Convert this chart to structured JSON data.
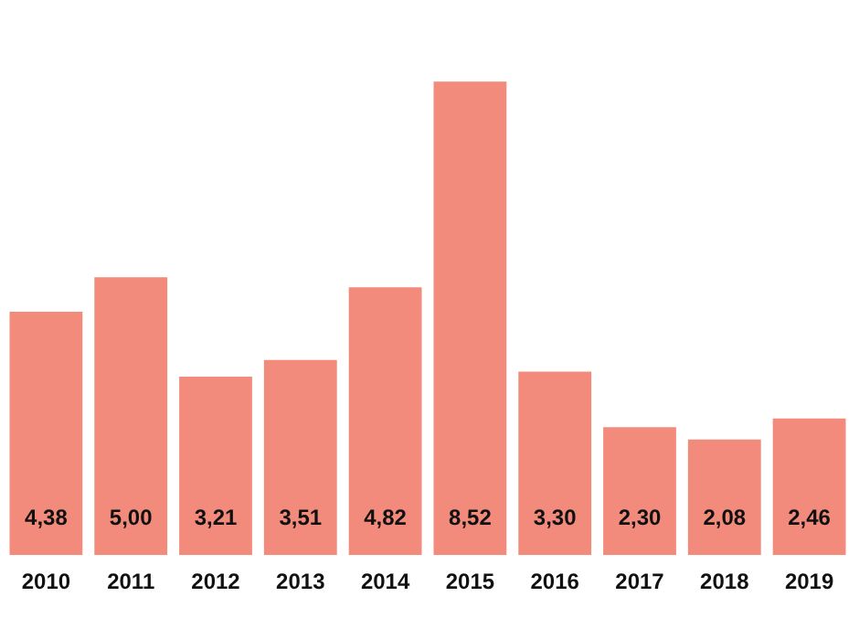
{
  "chart_data": {
    "type": "bar",
    "categories": [
      "2010",
      "2011",
      "2012",
      "2013",
      "2014",
      "2015",
      "2016",
      "2017",
      "2018",
      "2019"
    ],
    "values": [
      4.38,
      5.0,
      3.21,
      3.51,
      4.82,
      8.52,
      3.3,
      2.3,
      2.08,
      2.46
    ],
    "value_labels": [
      "4,38",
      "5,00",
      "3,21",
      "3,51",
      "4,82",
      "8,52",
      "3,30",
      "2,30",
      "2,08",
      "2,46"
    ],
    "color": "#f28b7b",
    "grid": false,
    "legend": false
  }
}
